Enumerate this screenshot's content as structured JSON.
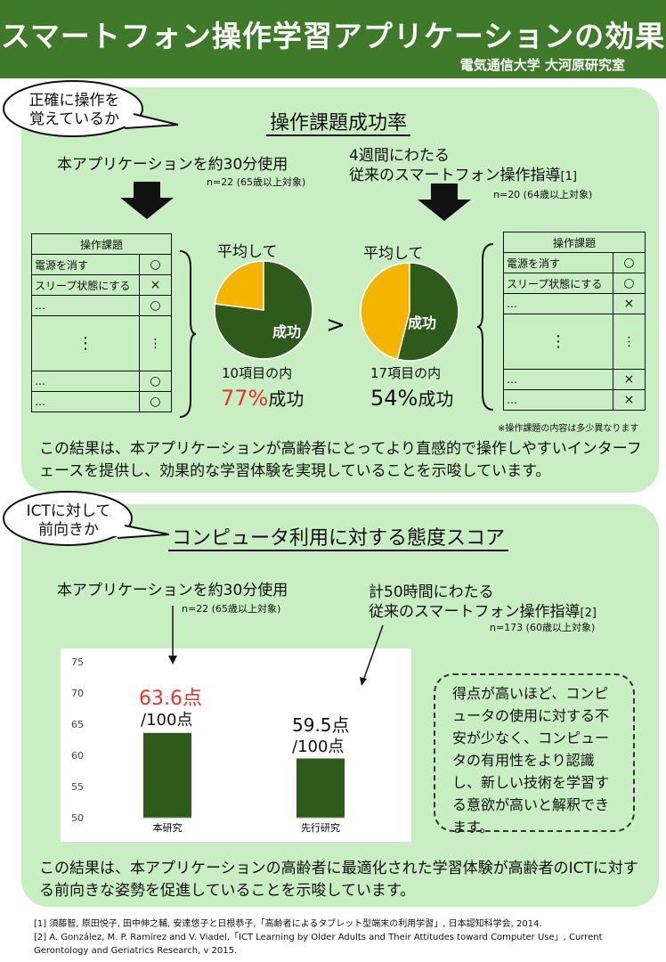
{
  "header": {
    "title": "スマートフォン操作学習アプリケーションの効果",
    "subtitle": "電気通信大学 大河原研究室"
  },
  "section1": {
    "bubble": [
      "正確に操作を",
      "覚えているか"
    ],
    "title": "操作課題成功率",
    "left": {
      "condition": "本アプリケーションを約30分使用",
      "n": "n=22 (65歳以上対象)",
      "avg_label": "平均して",
      "success_label": "成功",
      "items_label": "10項目の内",
      "pct": "77%",
      "pct_suffix": "成功",
      "pct_color": "#e8322b",
      "success_rate": 0.77,
      "table": {
        "header": "操作課題",
        "rows": [
          {
            "task": "電源を消す",
            "mark": "○"
          },
          {
            "task": "スリープ状態にする",
            "mark": "×"
          },
          {
            "task": "…",
            "mark": "○"
          },
          {
            "task": "⋮",
            "mark": "⋮"
          },
          {
            "task": "…",
            "mark": "○"
          },
          {
            "task": "…",
            "mark": "○"
          }
        ]
      }
    },
    "comparison": ">",
    "right": {
      "condition_line1": "4週間にわたる",
      "condition_line2": "従来のスマートフォン操作指導",
      "ref": "[1]",
      "n": "n=20 (64歳以上対象)",
      "avg_label": "平均して",
      "success_label": "成功",
      "items_label": "17項目の内",
      "pct": "54%",
      "pct_suffix": "成功",
      "success_rate": 0.54,
      "table": {
        "header": "操作課題",
        "rows": [
          {
            "task": "電源を消す",
            "mark": "○"
          },
          {
            "task": "スリープ状態にする",
            "mark": "○"
          },
          {
            "task": "…",
            "mark": "×"
          },
          {
            "task": "⋮",
            "mark": "⋮"
          },
          {
            "task": "…",
            "mark": "×"
          },
          {
            "task": "…",
            "mark": "×"
          }
        ]
      },
      "note": "※操作課題の内容は多少異なります"
    },
    "conclusion": "この結果は、本アプリケーションが高齢者にとってより直感的で操作しやすいインターフェースを提供し、効果的な学習体験を実現していることを示唆しています。",
    "colors": {
      "success": "#2e5a1c",
      "other": "#f5b400"
    }
  },
  "section2": {
    "bubble": [
      "ICTに対して",
      "前向きか"
    ],
    "title": "コンピュータ利用に対する態度スコア",
    "left_condition": "本アプリケーションを約30分使用",
    "left_n": "n=22 (65歳以上対象)",
    "right_condition_line1": "計50時間にわたる",
    "right_condition_line2": "従来のスマートフォン操作指導",
    "right_ref": "[2]",
    "right_n": "n=173 (60歳以上対象)",
    "score1": "63.6点",
    "score1_unit": "/100点",
    "score2": "59.5点",
    "score2_unit": "/100点",
    "note": "得点が高いほど、コンピュータの使用に対する不安が少なく、コンピュータの有用性をより認識し、新しい技術を学習する意欲が高いと解釈できます。",
    "conclusion": "この結果は、本アプリケーションの高齢者に最適化された学習体験が高齢者のICTに対する前向きな姿勢を促進していることを示唆しています。"
  },
  "chart_data": {
    "type": "bar",
    "categories": [
      "本研究",
      "先行研究"
    ],
    "values": [
      63.6,
      59.5
    ],
    "ylim": [
      50,
      75
    ],
    "yticks": [
      50,
      55,
      60,
      65,
      70,
      75
    ],
    "grid": false,
    "bar_color": "#2e5a1c"
  },
  "references": {
    "ref1": "[1] 須藤智, 原田悦子, 田中伸之輔, 安達悠子と日根恭子,「高齢者によるタブレット型端末の利用学習」, 日本認知科学会, 2014.",
    "ref2": "[2] A. González, M. P. Ramírez and V. Viadel,「ICT Learning by Older Adults and Their Attitudes toward Computer Use」, Current Gerontology and Geriatrics Research, v 2015."
  }
}
